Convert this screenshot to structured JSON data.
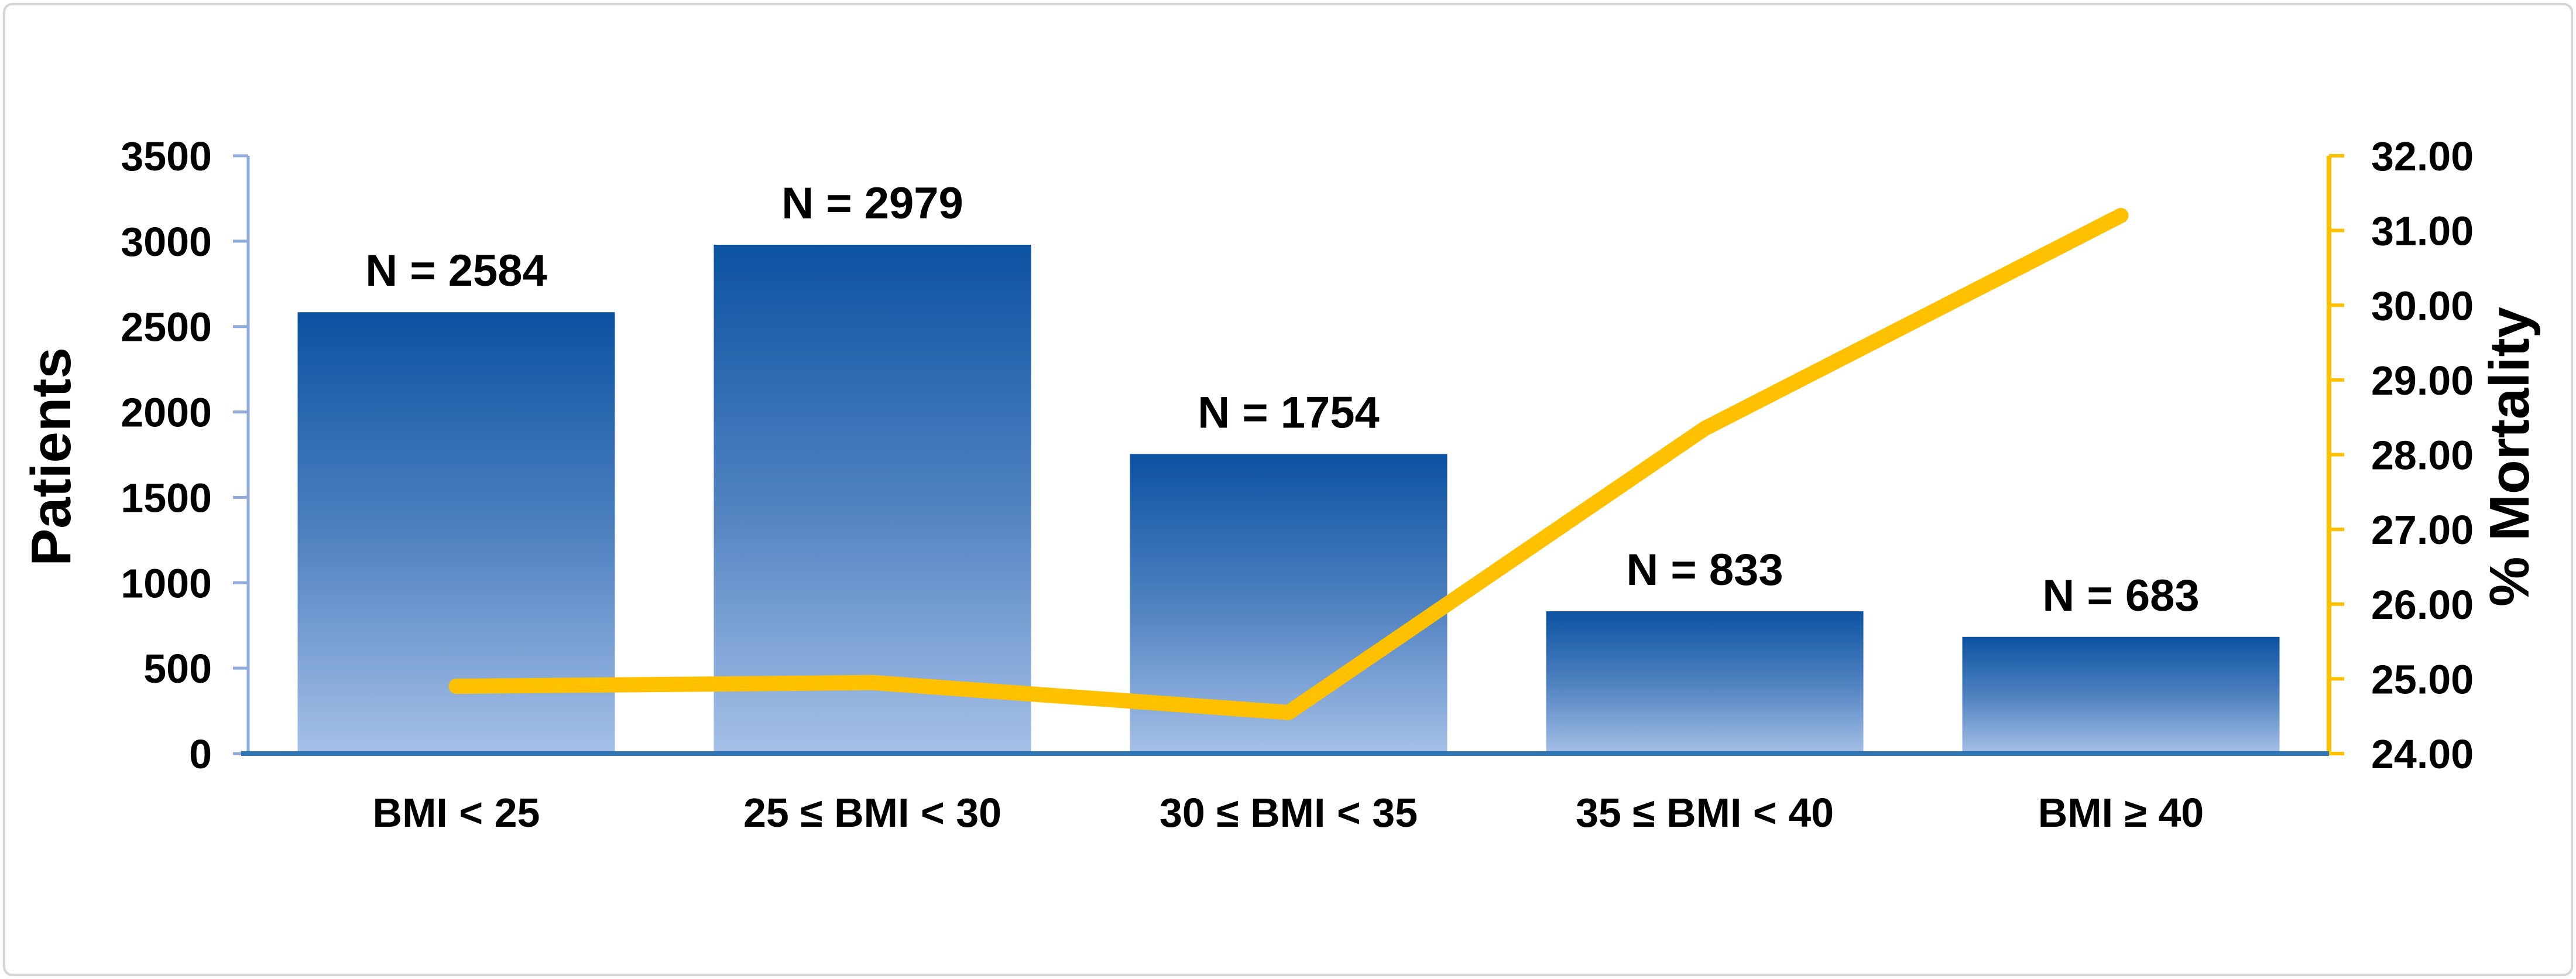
{
  "chart_data": {
    "type": "bar+line combo",
    "categories": [
      "BMI < 25",
      "25 ≤ BMI < 30",
      "30 ≤ BMI < 35",
      "35 ≤ BMI < 40",
      "BMI ≥ 40"
    ],
    "series": [
      {
        "name": "Patients",
        "type": "bar",
        "values": [
          2584,
          2979,
          1754,
          833,
          683
        ],
        "data_labels": [
          "N = 2584",
          "N = 2979",
          "N = 1754",
          "N = 833",
          "N = 683"
        ]
      },
      {
        "name": "% Mortality",
        "type": "line",
        "values": [
          24.9,
          24.95,
          24.55,
          28.35,
          31.2
        ]
      }
    ],
    "left_axis": {
      "title": "Patients",
      "min": 0,
      "max": 3500,
      "step": 500,
      "tick_labels": [
        "0",
        "500",
        "1000",
        "1500",
        "2000",
        "2500",
        "3000",
        "3500"
      ]
    },
    "right_axis": {
      "title": "% Mortality",
      "min": 24,
      "max": 32,
      "step": 1,
      "tick_labels": [
        "24.00",
        "25.00",
        "26.00",
        "27.00",
        "28.00",
        "29.00",
        "30.00",
        "31.00",
        "32.00"
      ]
    },
    "legend": "none",
    "grid": "off",
    "colors": {
      "bar_gradient_top": "#0B52A1",
      "bar_gradient_mid": "#4E81C0",
      "bar_gradient_bottom": "#A6C0E7",
      "line": "#FFC000",
      "bottom_axis": "#2E75B6",
      "left_axis": "#8FAADC",
      "right_axis": "#FFC000",
      "text": "#000000",
      "frame_border": "#D4D4D4"
    }
  }
}
